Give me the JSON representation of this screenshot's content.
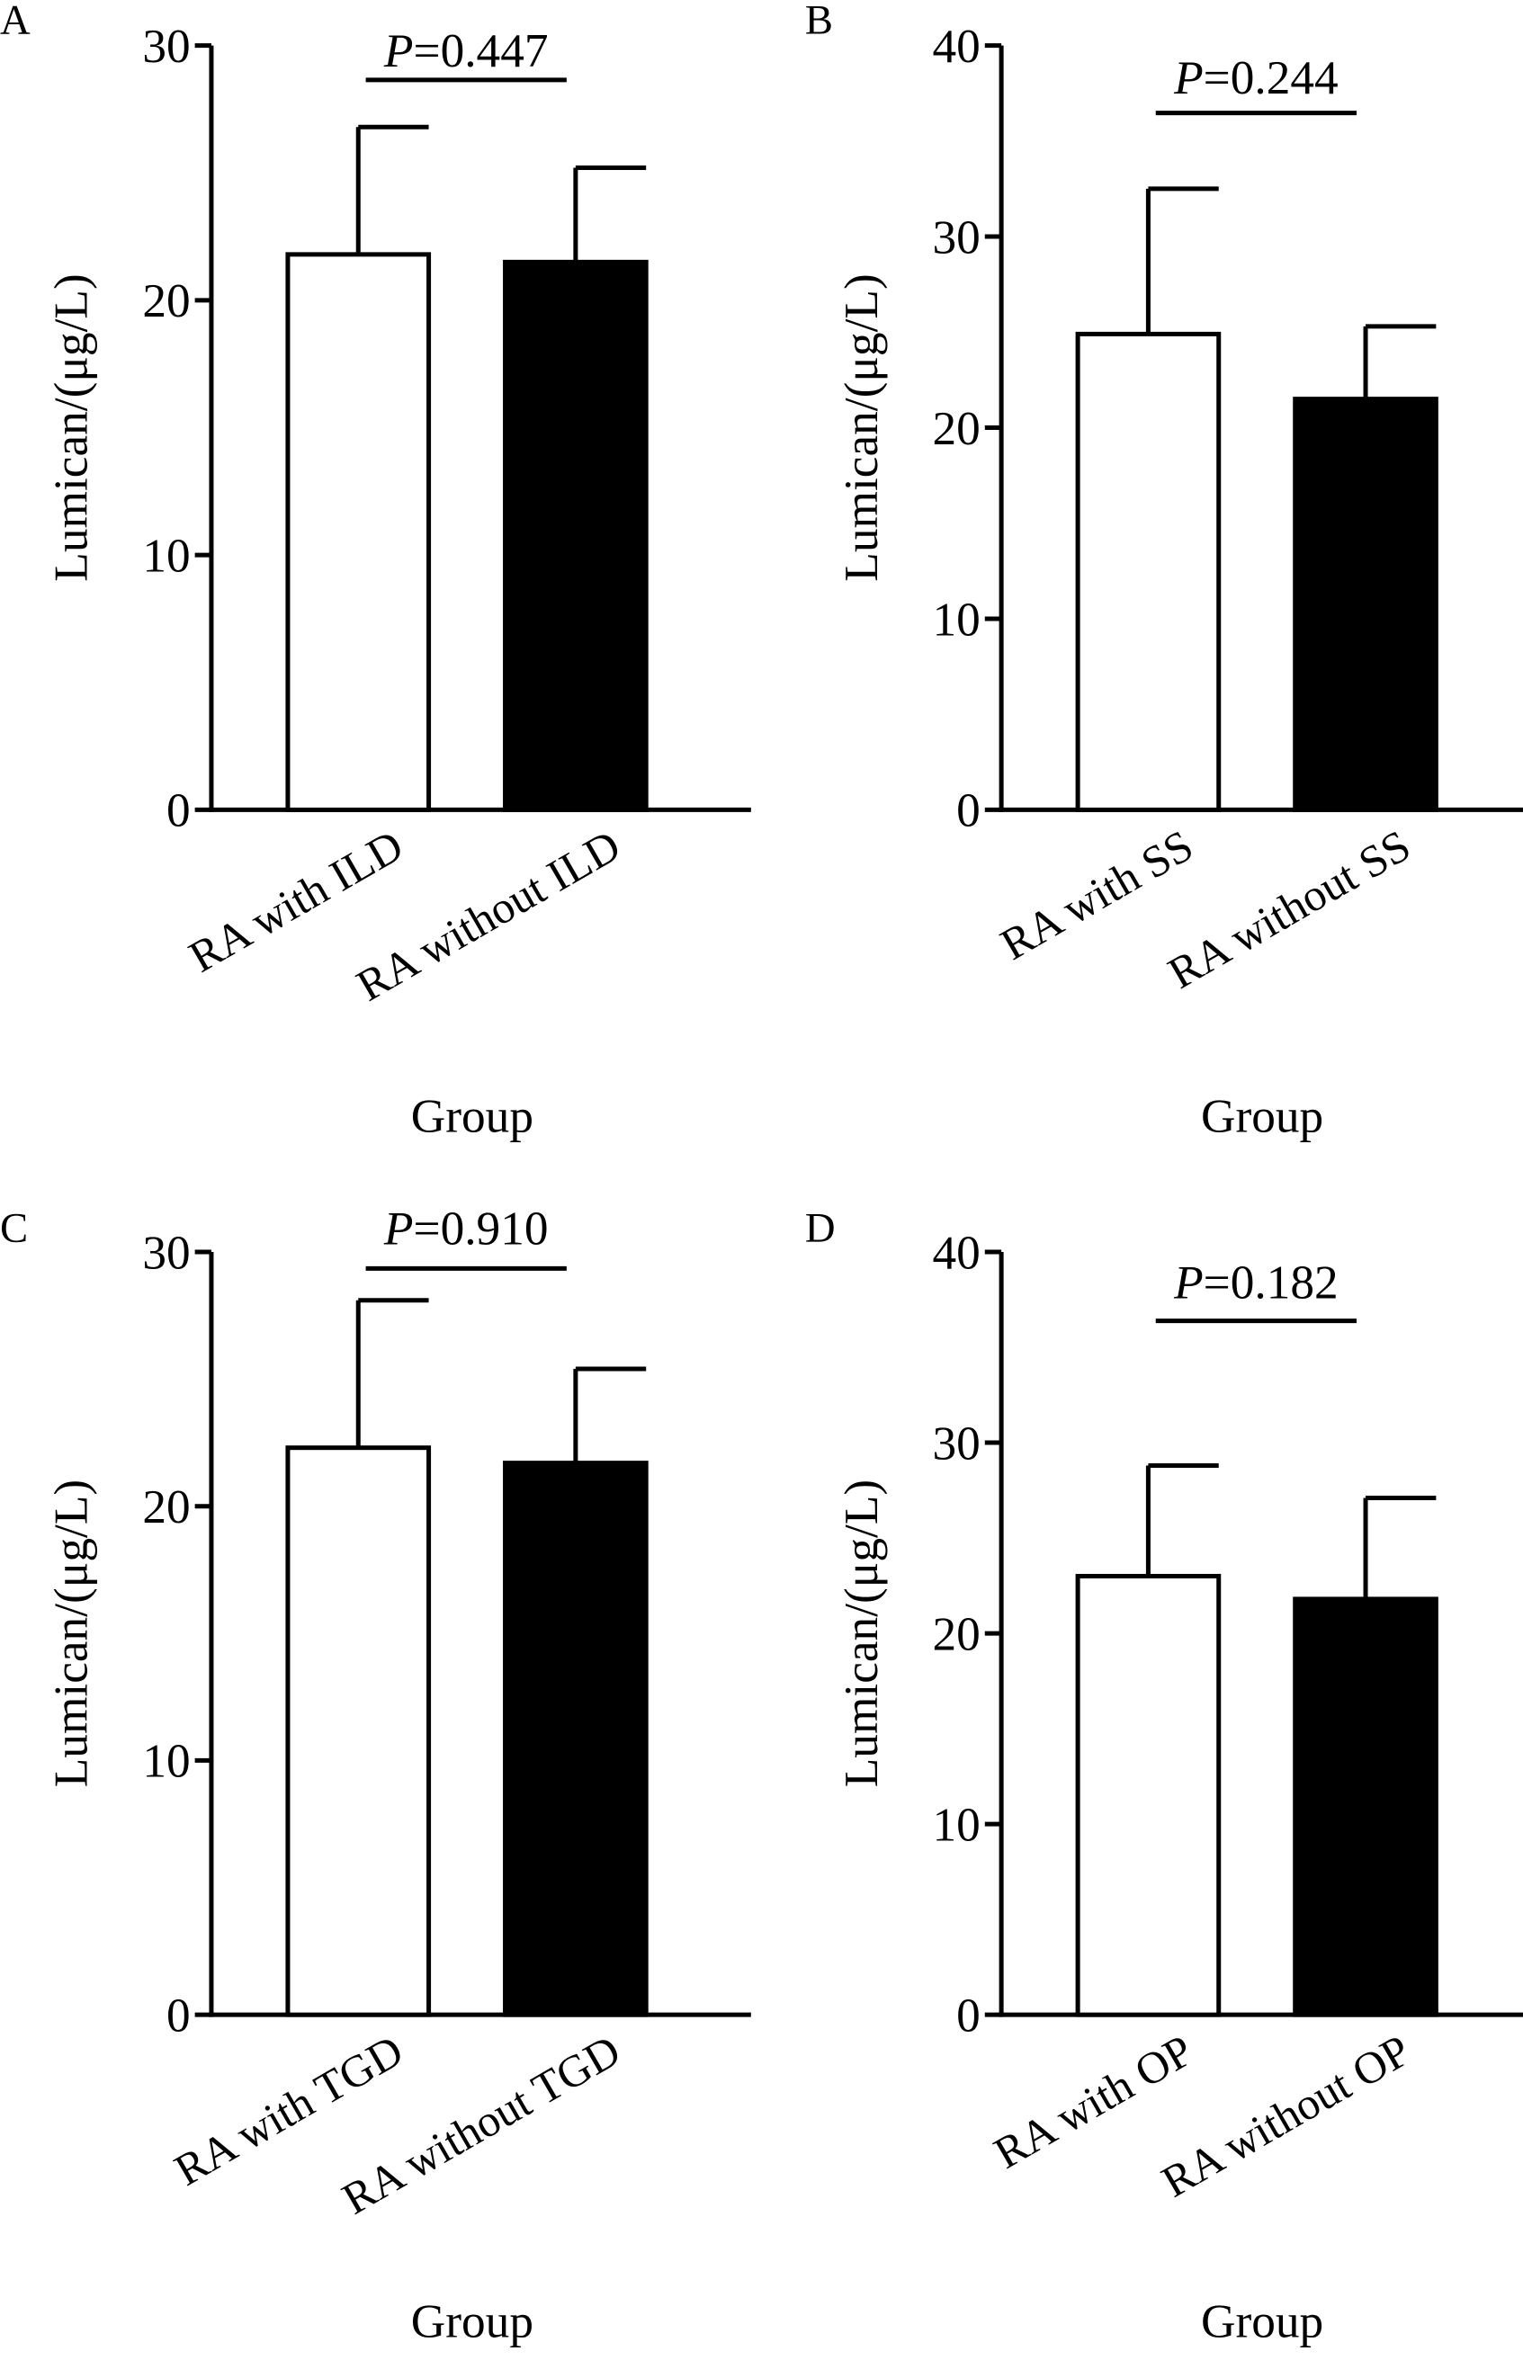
{
  "chart_data": [
    {
      "panel": "A",
      "type": "bar",
      "ylabel": "Lumican/(μg/L)",
      "xlabel": "Group",
      "ylim": [
        0,
        30
      ],
      "yticks": [
        "0",
        "10",
        "20",
        "30"
      ],
      "ytick_values": [
        0,
        10,
        20,
        30
      ],
      "categories": [
        "RA with ILD",
        "RA without ILD"
      ],
      "values": [
        21.8,
        21.5
      ],
      "error_upper": [
        26.8,
        25.2
      ],
      "p_italic": "P",
      "p_value": "=0.447"
    },
    {
      "panel": "B",
      "type": "bar",
      "ylabel": "Lumican/(μg/L)",
      "xlabel": "Group",
      "ylim": [
        0,
        40
      ],
      "yticks": [
        "0",
        "10",
        "20",
        "30",
        "40"
      ],
      "ytick_values": [
        0,
        10,
        20,
        30,
        40
      ],
      "categories": [
        "RA with SS",
        "RA without SS"
      ],
      "values": [
        24.9,
        21.5
      ],
      "error_upper": [
        32.5,
        25.3
      ],
      "p_italic": "P",
      "p_value": "=0.244"
    },
    {
      "panel": "C",
      "type": "bar",
      "ylabel": "Lumican/(μg/L)",
      "xlabel": "Group",
      "ylim": [
        0,
        30
      ],
      "yticks": [
        "0",
        "10",
        "20",
        "30"
      ],
      "ytick_values": [
        0,
        10,
        20,
        30
      ],
      "categories": [
        "RA with TGD",
        "RA without TGD"
      ],
      "values": [
        22.3,
        21.7
      ],
      "error_upper": [
        28.1,
        25.4
      ],
      "p_italic": "P",
      "p_value": "=0.910"
    },
    {
      "panel": "D",
      "type": "bar",
      "ylabel": "Lumican/(μg/L)",
      "xlabel": "Group",
      "ylim": [
        0,
        40
      ],
      "yticks": [
        "0",
        "10",
        "20",
        "30",
        "40"
      ],
      "ytick_values": [
        0,
        10,
        20,
        30,
        40
      ],
      "categories": [
        "RA with OP",
        "RA without OP"
      ],
      "values": [
        23.0,
        21.8
      ],
      "error_upper": [
        28.8,
        27.1
      ],
      "p_italic": "P",
      "p_value": "=0.182"
    }
  ],
  "colors": {
    "bar_1": "#ffffff",
    "bar_2": "#000000",
    "stroke": "#000000"
  }
}
